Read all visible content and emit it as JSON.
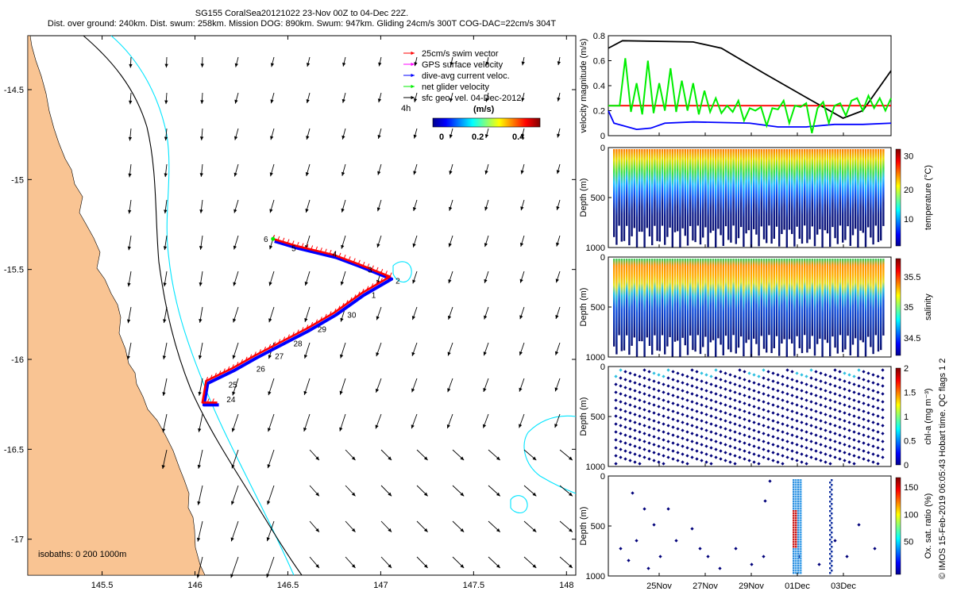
{
  "title_line1": "SG155 CoralSea20121022 23-Nov 00Z to 04-Dec 22Z.",
  "title_line2": "Dist. over ground: 240km. Dist. swum: 258km. Mission DOG: 890km. Swum: 947km. Gliding 24cm/s 300T COG-DAC=22cm/s 304T",
  "side_label": "© IMOS 15-Feb-2019 06:05:43 Hobart time. QC flags 1  2",
  "colors": {
    "land": "#f9c493",
    "isobath200": "#00e5ff",
    "isobath1000": "#000000",
    "swim": "#ff0000",
    "gps": "#ff00ff",
    "dac": "#0000ff",
    "net": "#00ee00"
  },
  "chart_data": [
    {
      "type": "map",
      "xlabel_ticks": [
        "145.5",
        "146",
        "146.5",
        "147",
        "147.5",
        "148"
      ],
      "ylabel_ticks": [
        "-14.5",
        "-15",
        "-15.5",
        "-16",
        "-16.5",
        "-17"
      ],
      "xlim": [
        145.1,
        148.05
      ],
      "ylim": [
        -17.2,
        -14.2
      ],
      "legend": [
        {
          "label": "25cm/s swim vector",
          "color": "#ff0000",
          "marker": "arrow"
        },
        {
          "label": "GPS surface velocity",
          "color": "#ff00ff",
          "marker": "arrow"
        },
        {
          "label": "dive-avg current veloc.",
          "color": "#0000ff",
          "marker": "arrow"
        },
        {
          "label": "net glider velocity",
          "color": "#00ee00",
          "marker": "arrow"
        },
        {
          "label": "sfc geo. vel. 04-Dec-2012",
          "color": "#000000",
          "marker": "arrow"
        }
      ],
      "legend_loc": "top-right",
      "colorbar": {
        "label": "(m/s)",
        "ticks": [
          "0",
          "0.2",
          "0.4"
        ],
        "prefix": "4h"
      },
      "isobath_label": "isobaths: 0   200  1000m",
      "track": [
        {
          "lon": 146.42,
          "lat": -15.33
        },
        {
          "lon": 146.55,
          "lat": -15.37
        },
        {
          "lon": 146.75,
          "lat": -15.42
        },
        {
          "lon": 146.88,
          "lat": -15.47
        },
        {
          "lon": 147.05,
          "lat": -15.54
        },
        {
          "lon": 146.9,
          "lat": -15.63
        },
        {
          "lon": 146.75,
          "lat": -15.74
        },
        {
          "lon": 146.6,
          "lat": -15.83
        },
        {
          "lon": 146.45,
          "lat": -15.91
        },
        {
          "lon": 146.32,
          "lat": -15.98
        },
        {
          "lon": 146.2,
          "lat": -16.05
        },
        {
          "lon": 146.06,
          "lat": -16.12
        },
        {
          "lon": 146.04,
          "lat": -16.24
        },
        {
          "lon": 146.12,
          "lat": -16.24
        }
      ],
      "track_labels": [
        {
          "text": "6",
          "lon": 146.37,
          "lat": -15.33
        },
        {
          "text": "5",
          "lon": 146.52,
          "lat": -15.38
        },
        {
          "text": "4",
          "lon": 146.74,
          "lat": -15.41
        },
        {
          "text": "3",
          "lon": 146.93,
          "lat": -15.5
        },
        {
          "text": "2",
          "lon": 147.08,
          "lat": -15.56
        },
        {
          "text": "1",
          "lon": 146.95,
          "lat": -15.64
        },
        {
          "text": "30",
          "lon": 146.82,
          "lat": -15.75
        },
        {
          "text": "29",
          "lon": 146.66,
          "lat": -15.83
        },
        {
          "text": "28",
          "lon": 146.53,
          "lat": -15.91
        },
        {
          "text": "27",
          "lon": 146.43,
          "lat": -15.98
        },
        {
          "text": "26",
          "lon": 146.33,
          "lat": -16.05
        },
        {
          "text": "25",
          "lon": 146.18,
          "lat": -16.14
        },
        {
          "text": "24",
          "lon": 146.17,
          "lat": -16.22
        }
      ]
    },
    {
      "type": "line",
      "ylabel": "velocity magnitude (m/s)",
      "ylim": [
        0,
        0.8
      ],
      "yticks": [
        "0",
        "0.2",
        "0.4",
        "0.6",
        "0.8"
      ],
      "series": [
        {
          "color": "#000000",
          "points": [
            [
              0,
              0.7
            ],
            [
              0.05,
              0.76
            ],
            [
              0.3,
              0.75
            ],
            [
              0.4,
              0.7
            ],
            [
              0.55,
              0.5
            ],
            [
              0.72,
              0.28
            ],
            [
              0.83,
              0.14
            ],
            [
              0.9,
              0.2
            ],
            [
              1,
              0.52
            ]
          ]
        },
        {
          "color": "#ff0000",
          "points": [
            [
              0,
              0.24
            ],
            [
              0.6,
              0.24
            ],
            [
              0.7,
              0.24
            ],
            [
              1,
              0.24
            ]
          ]
        },
        {
          "color": "#0000ff",
          "points": [
            [
              0,
              0.2
            ],
            [
              0.02,
              0.1
            ],
            [
              0.1,
              0.05
            ],
            [
              0.15,
              0.06
            ],
            [
              0.2,
              0.1
            ],
            [
              0.3,
              0.11
            ],
            [
              0.5,
              0.1
            ],
            [
              0.6,
              0.07
            ],
            [
              0.7,
              0.07
            ],
            [
              0.8,
              0.09
            ],
            [
              0.9,
              0.09
            ],
            [
              1,
              0.1
            ]
          ]
        },
        {
          "color": "#00ee00",
          "points": [
            [
              0,
              0.24
            ],
            [
              0.04,
              0.24
            ],
            [
              0.06,
              0.62
            ],
            [
              0.08,
              0.19
            ],
            [
              0.1,
              0.42
            ],
            [
              0.12,
              0.17
            ],
            [
              0.14,
              0.6
            ],
            [
              0.16,
              0.18
            ],
            [
              0.18,
              0.42
            ],
            [
              0.2,
              0.2
            ],
            [
              0.22,
              0.54
            ],
            [
              0.24,
              0.19
            ],
            [
              0.26,
              0.44
            ],
            [
              0.28,
              0.2
            ],
            [
              0.3,
              0.42
            ],
            [
              0.32,
              0.17
            ],
            [
              0.34,
              0.36
            ],
            [
              0.36,
              0.19
            ],
            [
              0.38,
              0.3
            ],
            [
              0.4,
              0.18
            ],
            [
              0.42,
              0.24
            ],
            [
              0.44,
              0.19
            ],
            [
              0.46,
              0.28
            ],
            [
              0.48,
              0.12
            ],
            [
              0.5,
              0.22
            ],
            [
              0.52,
              0.2
            ],
            [
              0.54,
              0.23
            ],
            [
              0.56,
              0.08
            ],
            [
              0.58,
              0.22
            ],
            [
              0.6,
              0.21
            ],
            [
              0.62,
              0.28
            ],
            [
              0.64,
              0.1
            ],
            [
              0.66,
              0.24
            ],
            [
              0.68,
              0.23
            ],
            [
              0.7,
              0.26
            ],
            [
              0.72,
              0.02
            ],
            [
              0.74,
              0.22
            ],
            [
              0.76,
              0.27
            ],
            [
              0.78,
              0.1
            ],
            [
              0.8,
              0.24
            ],
            [
              0.82,
              0.26
            ],
            [
              0.84,
              0.16
            ],
            [
              0.86,
              0.28
            ],
            [
              0.88,
              0.3
            ],
            [
              0.9,
              0.2
            ],
            [
              0.92,
              0.32
            ],
            [
              0.94,
              0.22
            ],
            [
              0.96,
              0.3
            ],
            [
              0.98,
              0.2
            ],
            [
              1,
              0.3
            ]
          ]
        }
      ]
    },
    {
      "type": "scatter",
      "ylabel": "Depth (m)",
      "colorbar_label": "temperature (°C)",
      "colorbar_ticks": [
        "10",
        "20",
        "30"
      ],
      "yticks": [
        "0",
        "500",
        "1000"
      ]
    },
    {
      "type": "scatter",
      "ylabel": "Depth (m)",
      "colorbar_label": "salinity",
      "colorbar_ticks": [
        "34.5",
        "35",
        "35.5"
      ],
      "yticks": [
        "0",
        "500",
        "1000"
      ]
    },
    {
      "type": "scatter",
      "ylabel": "Depth (m)",
      "colorbar_label": "chl-a (mg m⁻³)",
      "colorbar_ticks": [
        "0",
        "0.5",
        "1",
        "1.5",
        "2"
      ],
      "yticks": [
        "0",
        "500",
        "1000"
      ]
    },
    {
      "type": "scatter",
      "ylabel": "Depth (m)",
      "colorbar_label": "Ox. sat. ratio (%)",
      "colorbar_ticks": [
        "50",
        "100",
        "150"
      ],
      "yticks": [
        "0",
        "500",
        "1000"
      ],
      "xticks": [
        "25Nov",
        "27Nov",
        "29Nov",
        "01Dec",
        "03Dec"
      ]
    }
  ]
}
